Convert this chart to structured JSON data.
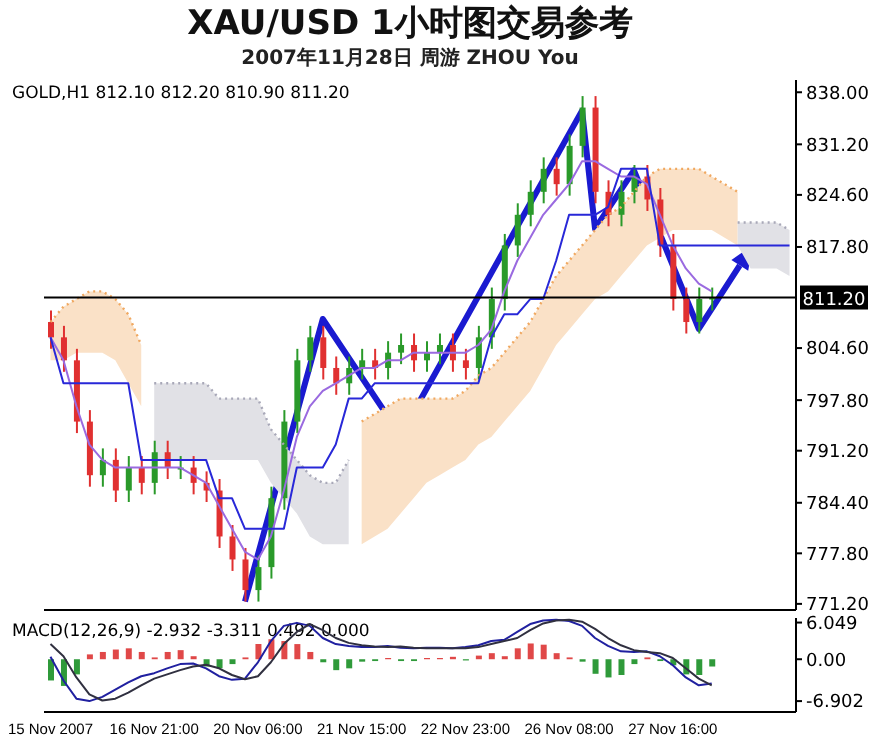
{
  "chart_data": [
    {
      "type": "candlestick",
      "title": "XAU/USD 1小时图交易参考",
      "subtitle": "2007年11月28日 周游 ZHOU You",
      "annotations": [
        "GOLD,H1 812.10 812.20 810.90 811.20"
      ],
      "categories": [
        null,
        null,
        null,
        null,
        null,
        null,
        null,
        null,
        null,
        null,
        null,
        null,
        null,
        null,
        null,
        null,
        null,
        null,
        null,
        null,
        null,
        null,
        null,
        null,
        null,
        null,
        null,
        null,
        null,
        null,
        null,
        null,
        null,
        null,
        null,
        null,
        null,
        null,
        null,
        null,
        null,
        null,
        null,
        null,
        null,
        null,
        null,
        null,
        null,
        null,
        null,
        null,
        null,
        null,
        null,
        null,
        null,
        null
      ],
      "tick_labels": "y",
      "grid": false,
      "legend": false,
      "ylim": [
        770.4,
        839.6
      ],
      "yticks": [
        {
          "value": 771.2,
          "label": "771.20"
        },
        {
          "value": 777.8,
          "label": "777.80"
        },
        {
          "value": 784.4,
          "label": "784.40"
        },
        {
          "value": 791.2,
          "label": "791.20"
        },
        {
          "value": 797.8,
          "label": "797.80"
        },
        {
          "value": 804.6,
          "label": "804.60"
        },
        {
          "value": 817.8,
          "label": "817.80"
        },
        {
          "value": 824.6,
          "label": "824.60"
        },
        {
          "value": 831.2,
          "label": "831.20"
        },
        {
          "value": 838,
          "label": "838.00"
        }
      ],
      "ref_lines": [
        {
          "axis": "y",
          "value": 811.2,
          "label": "811.20",
          "color": "#000000"
        }
      ],
      "ohlc": [
        [
          808,
          809.5,
          804.5,
          806
        ],
        [
          806,
          807.5,
          801.5,
          803
        ],
        [
          803,
          804.5,
          793.5,
          795
        ],
        [
          795,
          796.5,
          786.5,
          788
        ],
        [
          788,
          791.5,
          786.5,
          790
        ],
        [
          790,
          791.5,
          784.5,
          786
        ],
        [
          786,
          790.5,
          784.5,
          789
        ],
        [
          789,
          790.5,
          785.5,
          787
        ],
        [
          787,
          792.5,
          785.5,
          791
        ],
        [
          791,
          792.5,
          787.5,
          789
        ],
        [
          789,
          790.5,
          787.5,
          789
        ],
        [
          789,
          790.5,
          785.5,
          787
        ],
        [
          787,
          788.5,
          784.5,
          786
        ],
        [
          786,
          787.5,
          778.5,
          780
        ],
        [
          780,
          781.5,
          775.5,
          777
        ],
        [
          777,
          778.5,
          771.5,
          773
        ],
        [
          773,
          777.5,
          771.5,
          776
        ],
        [
          776,
          786.5,
          774.5,
          785
        ],
        [
          785,
          796.5,
          783.5,
          795
        ],
        [
          795,
          804.5,
          793.5,
          803
        ],
        [
          803,
          807.5,
          801.5,
          806
        ],
        [
          806,
          807.5,
          800.5,
          802
        ],
        [
          802,
          803.5,
          798.5,
          800
        ],
        [
          800,
          803.5,
          798.5,
          802
        ],
        [
          802,
          804.5,
          800.5,
          803
        ],
        [
          803,
          804.5,
          800.5,
          802
        ],
        [
          802,
          805.5,
          800.5,
          804
        ],
        [
          804,
          806.5,
          802.5,
          805
        ],
        [
          805,
          806.5,
          801.5,
          803
        ],
        [
          803,
          805.5,
          801.5,
          804
        ],
        [
          804,
          806.5,
          802.5,
          805
        ],
        [
          805,
          806.5,
          801.5,
          803
        ],
        [
          803,
          804.5,
          800.5,
          802
        ],
        [
          802,
          807.5,
          800.5,
          806
        ],
        [
          806,
          812.5,
          804.5,
          811
        ],
        [
          811,
          819.5,
          809.5,
          818
        ],
        [
          818,
          823.5,
          816.5,
          822
        ],
        [
          822,
          826.5,
          820.5,
          825
        ],
        [
          825,
          829.5,
          823.5,
          828
        ],
        [
          828,
          829.5,
          824.5,
          826
        ],
        [
          826,
          832.5,
          824.5,
          831
        ],
        [
          831,
          837.5,
          829.5,
          836
        ],
        [
          836,
          837.5,
          823.5,
          825
        ],
        [
          825,
          826.5,
          820.5,
          822
        ],
        [
          822,
          826.5,
          820.5,
          825
        ],
        [
          825,
          828.5,
          823.5,
          827
        ],
        [
          827,
          828.5,
          822.5,
          824
        ],
        [
          824,
          825.5,
          816.5,
          818
        ],
        [
          818,
          819.5,
          809.5,
          811
        ],
        [
          811,
          812.5,
          806.5,
          808
        ],
        [
          808,
          812.5,
          806.5,
          811
        ],
        [
          811,
          812.5,
          809.5,
          811.2
        ],
        null,
        null,
        null,
        null,
        null,
        null
      ],
      "series": [
        {
          "type": "line",
          "line_style": "dotted",
          "color": "#f0a860",
          "values": [
            808,
            810,
            811,
            812,
            812,
            811,
            809,
            805,
            null,
            null,
            null,
            null,
            null,
            null,
            null,
            null,
            null,
            null,
            null,
            null,
            null,
            null,
            null,
            null,
            795,
            796,
            797,
            798,
            798,
            798,
            798,
            798,
            799,
            801,
            802,
            804,
            806,
            808,
            811,
            814,
            816,
            818,
            820,
            822,
            823,
            825,
            827,
            828,
            828,
            828,
            828,
            827,
            826,
            825,
            null,
            null,
            null,
            null
          ],
          "upper": [
            808,
            810,
            811,
            812,
            812,
            811,
            809,
            805,
            null,
            null,
            null,
            null,
            null,
            null,
            null,
            null,
            null,
            null,
            null,
            null,
            null,
            null,
            null,
            null,
            795,
            796,
            797,
            798,
            798,
            798,
            798,
            798,
            799,
            801,
            802,
            804,
            806,
            808,
            811,
            814,
            816,
            818,
            820,
            822,
            823,
            825,
            827,
            828,
            828,
            828,
            828,
            827,
            826,
            825,
            null,
            null,
            null,
            null
          ],
          "lower": [
            803,
            803,
            804,
            804,
            804,
            803,
            800,
            797,
            null,
            null,
            null,
            null,
            null,
            null,
            null,
            null,
            null,
            null,
            null,
            null,
            null,
            null,
            null,
            null,
            779,
            780,
            781,
            783,
            785,
            787,
            788,
            789,
            790,
            792,
            793,
            795,
            797,
            799,
            802,
            805,
            807,
            809,
            811,
            812,
            814,
            816,
            818,
            819,
            820,
            820,
            820,
            820,
            819,
            818,
            null,
            null,
            null,
            null
          ]
        },
        {
          "type": "line",
          "line_style": "dotted",
          "color": "#a8a8b8",
          "values": [
            null,
            null,
            null,
            null,
            null,
            null,
            null,
            null,
            800,
            800,
            800,
            800,
            800,
            798,
            798,
            798,
            798,
            794,
            792,
            790,
            788,
            787,
            787,
            790,
            null,
            null,
            null,
            null,
            null,
            null,
            null,
            null,
            null,
            null,
            null,
            null,
            null,
            null,
            null,
            null,
            null,
            null,
            null,
            null,
            null,
            null,
            null,
            null,
            null,
            null,
            null,
            null,
            null,
            821,
            821,
            821,
            821,
            820
          ],
          "upper": [
            null,
            null,
            null,
            null,
            null,
            null,
            null,
            null,
            800,
            800,
            800,
            800,
            800,
            798,
            798,
            798,
            798,
            794,
            792,
            790,
            788,
            787,
            787,
            790,
            null,
            null,
            null,
            null,
            null,
            null,
            null,
            null,
            null,
            null,
            null,
            null,
            null,
            null,
            null,
            null,
            null,
            null,
            null,
            null,
            null,
            null,
            null,
            null,
            null,
            null,
            null,
            null,
            null,
            821,
            821,
            821,
            821,
            820
          ],
          "lower": [
            null,
            null,
            null,
            null,
            null,
            null,
            null,
            null,
            790,
            790,
            790,
            790,
            790,
            790,
            790,
            790,
            790,
            787,
            785,
            783,
            780,
            779,
            779,
            779,
            null,
            null,
            null,
            null,
            null,
            null,
            null,
            null,
            null,
            null,
            null,
            null,
            null,
            null,
            null,
            null,
            null,
            null,
            null,
            null,
            null,
            null,
            null,
            null,
            null,
            null,
            null,
            null,
            null,
            818,
            815,
            815,
            815,
            814
          ]
        },
        {
          "type": "line",
          "color": "#9a6ae0",
          "values": [
            806,
            803,
            797,
            792,
            790,
            789,
            789,
            789,
            789,
            789,
            789,
            788,
            787,
            784,
            781,
            778,
            777,
            780,
            786,
            793,
            797,
            799,
            800,
            801,
            802,
            802,
            803,
            803,
            804,
            804,
            804,
            804,
            804,
            805,
            807,
            812,
            816,
            819,
            822,
            824,
            826,
            829,
            829,
            828,
            827,
            827,
            826,
            822,
            818,
            815,
            813,
            812,
            null,
            null,
            null,
            null,
            null,
            null
          ]
        },
        {
          "type": "line",
          "color": "#2828d8",
          "values": [
            806,
            800,
            800,
            800,
            800,
            800,
            800,
            790,
            790,
            790,
            790,
            790,
            790,
            785,
            785,
            781,
            781,
            781,
            781,
            789,
            789,
            789,
            792,
            798,
            798,
            800,
            800,
            800,
            800,
            800,
            800,
            800,
            800,
            800,
            806,
            809,
            809,
            811,
            811,
            816,
            822,
            822,
            822,
            823,
            828,
            828,
            828,
            818,
            818,
            818,
            818,
            818,
            818,
            818,
            818,
            818,
            818,
            818
          ]
        }
      ]
    },
    {
      "type": "bar",
      "annotations": [
        "MACD(12,26,9) -2.932 -3.311 0.492 0.000"
      ],
      "categories": [
        "15 Nov 2007",
        null,
        null,
        null,
        null,
        null,
        null,
        null,
        "16 Nov 21:00",
        null,
        null,
        null,
        null,
        null,
        null,
        null,
        "20 Nov 06:00",
        null,
        null,
        null,
        null,
        null,
        null,
        null,
        "21 Nov 15:00",
        null,
        null,
        null,
        null,
        null,
        null,
        null,
        "22 Nov 23:00",
        null,
        null,
        null,
        null,
        null,
        null,
        null,
        "26 Nov 08:00",
        null,
        null,
        null,
        null,
        null,
        null,
        null,
        "27 Nov 16:00",
        null,
        null,
        null,
        null,
        null,
        null,
        null,
        null,
        null
      ],
      "grid": false,
      "legend": false,
      "ylim": [
        -8.7,
        6.8
      ],
      "yticks": [
        -6.902,
        {
          "value": 0,
          "label": "0.00"
        },
        6.049
      ],
      "series": [
        {
          "type": "bar",
          "values": [
            -3.5,
            -4.4,
            -2.5,
            0.8,
            1.2,
            1.6,
            1.8,
            1.2,
            0.3,
            1.2,
            1.5,
            0.5,
            -1.2,
            -1.5,
            -0.8,
            0.3,
            2.5,
            3.3,
            3.0,
            2.5,
            1.2,
            -0.5,
            -1.8,
            -1.5,
            -0.4,
            -0.3,
            0.2,
            -0.3,
            -0.3,
            0.2,
            0.2,
            0.4,
            -0.2,
            0.6,
            1.0,
            0.5,
            1.8,
            2.6,
            2.4,
            1.0,
            0.3,
            -0.4,
            -2.4,
            -3.0,
            -2.6,
            -0.8,
            0.3,
            -0.3,
            -1.0,
            -2.5,
            -2.6,
            -1.2,
            null,
            null,
            null,
            null,
            null,
            null
          ],
          "colors": [
            "#2f9a3a",
            "#2f9a3a",
            "#2f9a3a",
            "#e04848",
            "#e04848",
            "#e04848",
            "#e04848",
            "#e04848",
            "#e04848",
            "#e04848",
            "#e04848",
            "#e04848",
            "#2f9a3a",
            "#2f9a3a",
            "#2f9a3a",
            "#e04848",
            "#e04848",
            "#e04848",
            "#e04848",
            "#e04848",
            "#e04848",
            "#2f9a3a",
            "#2f9a3a",
            "#2f9a3a",
            "#2f9a3a",
            "#2f9a3a",
            "#e04848",
            "#2f9a3a",
            "#2f9a3a",
            "#e04848",
            "#e04848",
            "#e04848",
            "#2f9a3a",
            "#e04848",
            "#e04848",
            "#e04848",
            "#e04848",
            "#e04848",
            "#e04848",
            "#e04848",
            "#e04848",
            "#2f9a3a",
            "#2f9a3a",
            "#2f9a3a",
            "#2f9a3a",
            "#2f9a3a",
            "#e04848",
            "#2f9a3a",
            "#2f9a3a",
            "#2f9a3a",
            "#2f9a3a",
            "#2f9a3a",
            null,
            null,
            null,
            null,
            null,
            null
          ]
        },
        {
          "type": "line",
          "color": "#2020a0",
          "values": [
            0.4,
            -3.5,
            -6.5,
            -6.9,
            -6.2,
            -5.0,
            -3.8,
            -2.8,
            -2.3,
            -1.5,
            -0.8,
            -0.7,
            -1.5,
            -2.8,
            -3.4,
            -3.2,
            -0.5,
            3.0,
            5.5,
            6.0,
            5.5,
            3.5,
            2.5,
            2.2,
            2.0,
            2.0,
            2.2,
            1.9,
            1.8,
            1.9,
            1.9,
            1.8,
            2.0,
            2.3,
            3.0,
            3.2,
            4.5,
            5.8,
            6.4,
            6.5,
            6.3,
            5.5,
            3.5,
            2.2,
            1.3,
            1.2,
            1.3,
            0.5,
            -1.0,
            -3.0,
            -4.3,
            -4.0,
            null,
            null,
            null,
            null,
            null,
            null
          ]
        },
        {
          "type": "line",
          "color": "#303040",
          "values": [
            2.5,
            0.5,
            -3.0,
            -5.8,
            -6.8,
            -6.5,
            -5.5,
            -4.3,
            -3.2,
            -2.5,
            -1.8,
            -1.2,
            -0.9,
            -1.5,
            -2.6,
            -3.3,
            -2.8,
            -0.5,
            2.5,
            4.5,
            5.8,
            4.8,
            3.5,
            2.7,
            2.3,
            2.1,
            2.0,
            2.1,
            1.9,
            1.8,
            1.8,
            1.8,
            1.8,
            2.0,
            2.5,
            3.0,
            3.5,
            4.8,
            5.9,
            6.4,
            6.5,
            6.2,
            5.0,
            3.5,
            2.3,
            1.5,
            1.2,
            1.0,
            0.2,
            -1.5,
            -3.2,
            -4.3,
            null,
            null,
            null,
            null,
            null,
            null
          ]
        }
      ]
    }
  ]
}
